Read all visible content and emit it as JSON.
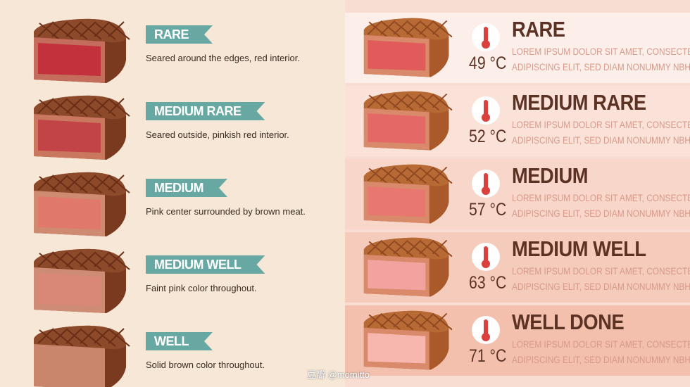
{
  "left": {
    "items": [
      {
        "label": "RARE",
        "description": "Seared around the edges, red interior."
      },
      {
        "label": "MEDIUM RARE",
        "description": "Seared outside, pinkish red interior."
      },
      {
        "label": "MEDIUM",
        "description": "Pink center surrounded by brown meat."
      },
      {
        "label": "MEDIUM WELL",
        "description": "Faint pink color throughout."
      },
      {
        "label": "WELL",
        "description": "Solid brown color throughout."
      }
    ]
  },
  "right": {
    "items": [
      {
        "label": "RARE",
        "temperature": "49 °C",
        "text": [
          "LOREM IPSUM DOLOR SIT AMET, CONSECTETUER",
          "ADIPISCING ELIT, SED DIAM NONUMMY NBH"
        ]
      },
      {
        "label": "MEDIUM RARE",
        "temperature": "52 °C",
        "text": [
          "LOREM IPSUM DOLOR SIT AMET, CONSECTETUER",
          "ADIPISCING ELIT, SED DIAM NONUMMY NBH"
        ]
      },
      {
        "label": "MEDIUM",
        "temperature": "57 °C",
        "text": [
          "LOREM IPSUM DOLOR SIT AMET, CONSECTETUER",
          "ADIPISCING ELIT, SED DIAM NONUMMY NBH"
        ]
      },
      {
        "label": "MEDIUM WELL",
        "temperature": "63 °C",
        "text": [
          "LOREM IPSUM DOLOR SIT AMET, CONSECTETUER",
          "ADIPISCING ELIT, SED DIAM NONUMMY NBH"
        ]
      },
      {
        "label": "WELL DONE",
        "temperature": "71 °C",
        "text": [
          "LOREM IPSUM DOLOR SIT AMET, CONSECTETUER",
          "ADIPISCING ELIT, SED DIAM NONUMMY NBH"
        ]
      }
    ]
  },
  "watermark": "豆瓣 @momitto"
}
